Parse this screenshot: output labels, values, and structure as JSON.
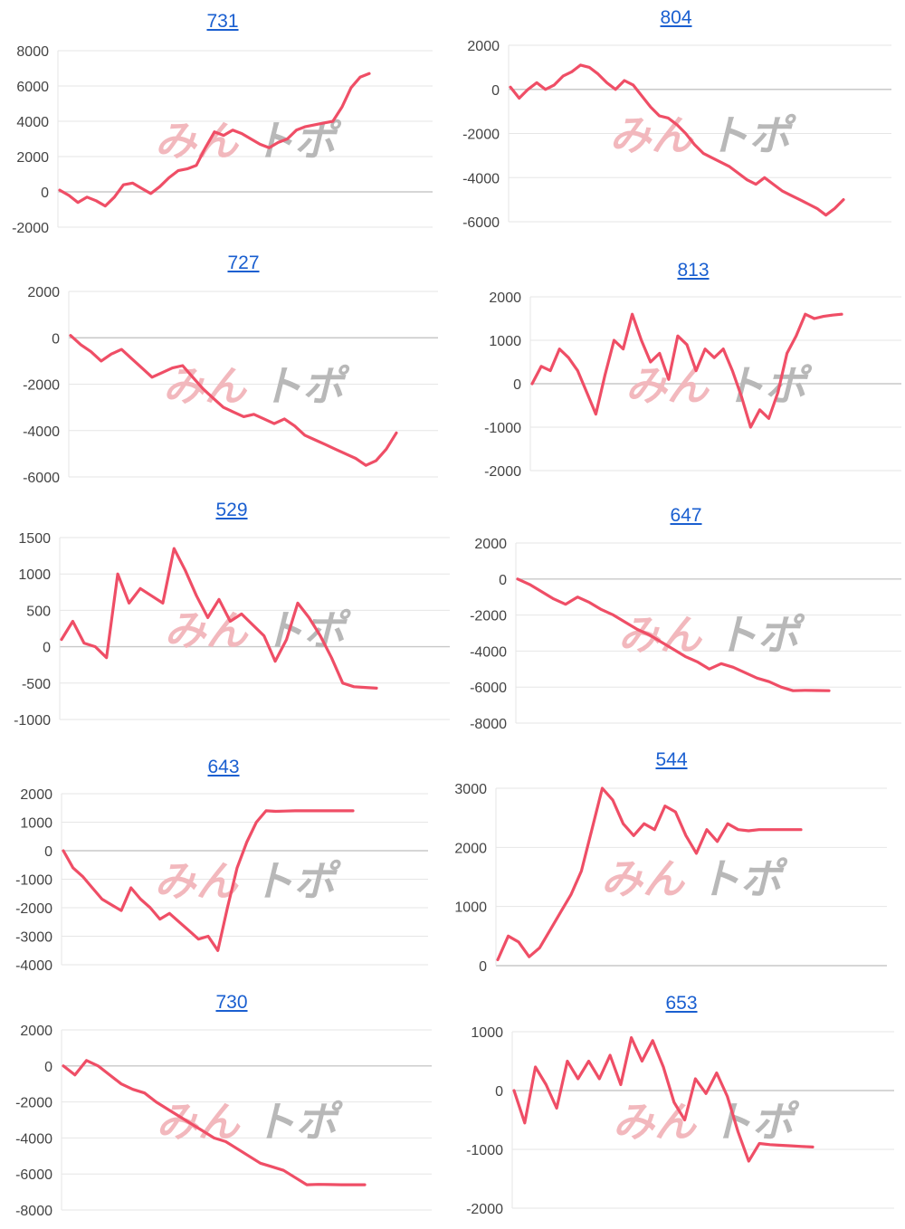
{
  "watermark": {
    "text_red": "みん",
    "text_gray": "トポ",
    "red_color": "#f2b8bd",
    "gray_color": "#b8b8b8"
  },
  "colors": {
    "line": "#ef4e66",
    "title": "#1a5fd0",
    "grid": "#e6e6e6",
    "zero_line": "#c8c8c8",
    "tick_text": "#444444"
  },
  "chart_data": [
    {
      "type": "line",
      "title": "731",
      "xlabel": "",
      "ylabel": "",
      "yticks": [
        8000,
        6000,
        4000,
        2000,
        0,
        -2000
      ],
      "ylim": [
        -2000,
        8000
      ],
      "grid": true,
      "x": [
        0,
        1,
        2,
        3,
        4,
        5,
        6,
        7,
        8,
        9,
        10,
        11,
        12,
        13,
        14,
        15,
        16,
        17,
        18,
        19,
        20,
        21,
        22,
        23,
        24,
        25,
        26,
        27,
        28,
        29,
        30,
        31,
        32,
        33,
        34
      ],
      "values": [
        100,
        -200,
        -600,
        -300,
        -500,
        -800,
        -300,
        400,
        500,
        200,
        -100,
        300,
        800,
        1200,
        1300,
        1500,
        2500,
        3400,
        3200,
        3500,
        3300,
        3000,
        2700,
        2500,
        2800,
        3000,
        3500,
        3700,
        3800,
        3900,
        4000,
        4800,
        5900,
        6500,
        6700
      ]
    },
    {
      "type": "line",
      "title": "804",
      "xlabel": "",
      "ylabel": "",
      "yticks": [
        2000,
        0,
        -2000,
        -4000,
        -6000
      ],
      "ylim": [
        -6000,
        2000
      ],
      "grid": true,
      "x": [
        0,
        1,
        2,
        3,
        4,
        5,
        6,
        7,
        8,
        9,
        10,
        11,
        12,
        13,
        14,
        15,
        16,
        17,
        18,
        19,
        20,
        21,
        22,
        23,
        24,
        25,
        26,
        27,
        28,
        29,
        30,
        31,
        32,
        33,
        34,
        35,
        36,
        37,
        38
      ],
      "values": [
        100,
        -400,
        0,
        300,
        0,
        200,
        600,
        800,
        1100,
        1000,
        700,
        300,
        0,
        400,
        200,
        -300,
        -800,
        -1200,
        -1300,
        -1600,
        -2000,
        -2500,
        -2900,
        -3100,
        -3300,
        -3500,
        -3800,
        -4100,
        -4300,
        -4000,
        -4300,
        -4600,
        -4800,
        -5000,
        -5200,
        -5400,
        -5700,
        -5400,
        -5000
      ]
    },
    {
      "type": "line",
      "title": "727",
      "xlabel": "",
      "ylabel": "",
      "yticks": [
        2000,
        0,
        -2000,
        -4000,
        -6000
      ],
      "ylim": [
        -6000,
        2000
      ],
      "grid": true,
      "x": [
        0,
        1,
        2,
        3,
        4,
        5,
        6,
        7,
        8,
        9,
        10,
        11,
        12,
        13,
        14,
        15,
        16,
        17,
        18,
        19,
        20,
        21,
        22,
        23,
        24,
        25,
        26,
        27,
        28,
        29,
        30,
        31,
        32
      ],
      "values": [
        100,
        -300,
        -600,
        -1000,
        -700,
        -500,
        -900,
        -1300,
        -1700,
        -1500,
        -1300,
        -1200,
        -1700,
        -2200,
        -2600,
        -3000,
        -3200,
        -3400,
        -3300,
        -3500,
        -3700,
        -3500,
        -3800,
        -4200,
        -4400,
        -4600,
        -4800,
        -5000,
        -5200,
        -5500,
        -5300,
        -4800,
        -4100
      ]
    },
    {
      "type": "line",
      "title": "813",
      "xlabel": "",
      "ylabel": "",
      "yticks": [
        2000,
        1000,
        0,
        -1000,
        -2000
      ],
      "ylim": [
        -2000,
        2000
      ],
      "grid": true,
      "x": [
        0,
        1,
        2,
        3,
        4,
        5,
        6,
        7,
        8,
        9,
        10,
        11,
        12,
        13,
        14,
        15,
        16,
        17,
        18,
        19,
        20,
        21,
        22,
        23,
        24,
        25,
        26,
        27,
        28,
        29,
        30,
        31,
        32,
        33,
        34
      ],
      "values": [
        0,
        400,
        300,
        800,
        600,
        300,
        -200,
        -700,
        200,
        1000,
        800,
        1600,
        1000,
        500,
        700,
        100,
        1100,
        900,
        300,
        800,
        600,
        800,
        300,
        -300,
        -1000,
        -600,
        -800,
        -200,
        700,
        1100,
        1600,
        1500,
        1550,
        1580,
        1600
      ]
    },
    {
      "type": "line",
      "title": "529",
      "xlabel": "",
      "ylabel": "",
      "yticks": [
        1500,
        1000,
        500,
        0,
        -500,
        -1000
      ],
      "ylim": [
        -1000,
        1500
      ],
      "grid": true,
      "x": [
        0,
        1,
        2,
        3,
        4,
        5,
        6,
        7,
        8,
        9,
        10,
        11,
        12,
        13,
        14,
        15,
        16,
        17,
        18,
        19,
        20,
        21,
        22,
        23,
        24,
        25,
        26,
        27,
        28
      ],
      "values": [
        100,
        350,
        50,
        0,
        -150,
        1000,
        600,
        800,
        700,
        600,
        1350,
        1050,
        700,
        400,
        650,
        350,
        450,
        300,
        150,
        -200,
        100,
        600,
        400,
        150,
        -150,
        -500,
        -550,
        -560,
        -570
      ]
    },
    {
      "type": "line",
      "title": "647",
      "xlabel": "",
      "ylabel": "",
      "yticks": [
        2000,
        0,
        -2000,
        -4000,
        -6000,
        -8000
      ],
      "ylim": [
        -8000,
        2000
      ],
      "grid": true,
      "x": [
        0,
        1,
        2,
        3,
        4,
        5,
        6,
        7,
        8,
        9,
        10,
        11,
        12,
        13,
        14,
        15,
        16,
        17,
        18,
        19,
        20,
        21,
        22,
        23,
        24,
        25,
        26
      ],
      "values": [
        0,
        -300,
        -700,
        -1100,
        -1400,
        -1000,
        -1300,
        -1700,
        -2000,
        -2400,
        -2800,
        -3100,
        -3500,
        -3900,
        -4300,
        -4600,
        -5000,
        -4700,
        -4900,
        -5200,
        -5500,
        -5700,
        -6000,
        -6200,
        -6180,
        -6190,
        -6200
      ]
    },
    {
      "type": "line",
      "title": "643",
      "xlabel": "",
      "ylabel": "",
      "yticks": [
        2000,
        1000,
        0,
        -1000,
        -2000,
        -3000,
        -4000
      ],
      "ylim": [
        -4000,
        2000
      ],
      "grid": true,
      "x": [
        0,
        1,
        2,
        3,
        4,
        5,
        6,
        7,
        8,
        9,
        10,
        11,
        12,
        13,
        14,
        15,
        16,
        17,
        18,
        19,
        20,
        21,
        22,
        23,
        24,
        25,
        26,
        27,
        28,
        29,
        30
      ],
      "values": [
        0,
        -600,
        -900,
        -1300,
        -1700,
        -1900,
        -2100,
        -1300,
        -1700,
        -2000,
        -2400,
        -2200,
        -2500,
        -2800,
        -3100,
        -3000,
        -3500,
        -2000,
        -600,
        300,
        1000,
        1400,
        1380,
        1390,
        1400,
        1400,
        1400,
        1400,
        1400,
        1400,
        1400
      ]
    },
    {
      "type": "line",
      "title": "544",
      "xlabel": "",
      "ylabel": "",
      "yticks": [
        3000,
        2000,
        1000,
        0
      ],
      "ylim": [
        0,
        3000
      ],
      "grid": true,
      "x": [
        0,
        1,
        2,
        3,
        4,
        5,
        6,
        7,
        8,
        9,
        10,
        11,
        12,
        13,
        14,
        15,
        16,
        17,
        18,
        19,
        20,
        21,
        22,
        23,
        24,
        25,
        26,
        27,
        28,
        29
      ],
      "values": [
        100,
        500,
        400,
        150,
        300,
        600,
        900,
        1200,
        1600,
        2300,
        3000,
        2800,
        2400,
        2200,
        2400,
        2300,
        2700,
        2600,
        2200,
        1900,
        2300,
        2100,
        2400,
        2300,
        2280,
        2300,
        2300,
        2300,
        2300,
        2300
      ]
    },
    {
      "type": "line",
      "title": "730",
      "xlabel": "",
      "ylabel": "",
      "yticks": [
        2000,
        0,
        -2000,
        -4000,
        -6000,
        -8000
      ],
      "ylim": [
        -8000,
        2000
      ],
      "grid": true,
      "x": [
        0,
        1,
        2,
        3,
        4,
        5,
        6,
        7,
        8,
        9,
        10,
        11,
        12,
        13,
        14,
        15,
        16,
        17,
        18,
        19,
        20,
        21,
        22,
        23,
        24,
        25,
        26
      ],
      "values": [
        0,
        -500,
        300,
        0,
        -500,
        -1000,
        -1300,
        -1500,
        -2000,
        -2400,
        -2800,
        -3200,
        -3600,
        -4000,
        -4200,
        -4600,
        -5000,
        -5400,
        -5600,
        -5800,
        -6200,
        -6600,
        -6580,
        -6590,
        -6600,
        -6600,
        -6600
      ]
    },
    {
      "type": "line",
      "title": "653",
      "xlabel": "",
      "ylabel": "",
      "yticks": [
        1000,
        0,
        -1000,
        -2000
      ],
      "ylim": [
        -2000,
        1000
      ],
      "grid": true,
      "x": [
        0,
        1,
        2,
        3,
        4,
        5,
        6,
        7,
        8,
        9,
        10,
        11,
        12,
        13,
        14,
        15,
        16,
        17,
        18,
        19,
        20,
        21,
        22,
        23,
        24,
        25,
        26,
        27,
        28
      ],
      "values": [
        0,
        -550,
        400,
        100,
        -300,
        500,
        200,
        500,
        200,
        600,
        100,
        900,
        500,
        850,
        400,
        -200,
        -500,
        200,
        -50,
        300,
        -100,
        -700,
        -1200,
        -900,
        -920,
        -930,
        -940,
        -950,
        -960
      ]
    }
  ]
}
